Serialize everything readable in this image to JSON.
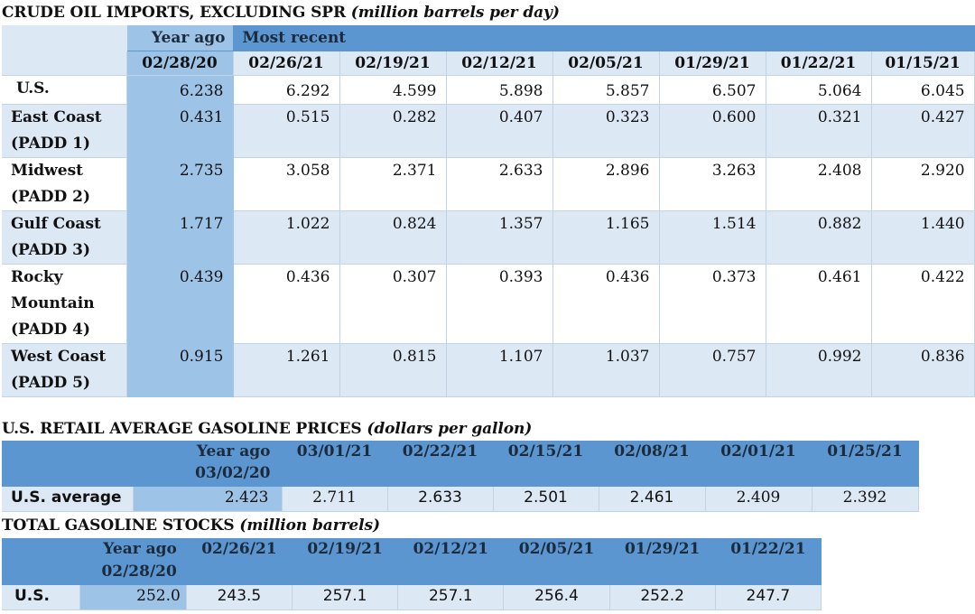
{
  "crude": {
    "title": "CRUDE OIL IMPORTS, EXCLUDING SPR",
    "unit": "(million barrels per day)",
    "year_ago_label": "Year ago",
    "most_recent_label": "Most recent",
    "dates": [
      "02/28/20",
      "02/26/21",
      "02/19/21",
      "02/12/21",
      "02/05/21",
      "01/29/21",
      "01/22/21",
      "01/15/21"
    ],
    "rows": [
      {
        "label": "U.S.",
        "values": [
          "6.238",
          "6.292",
          "4.599",
          "5.898",
          "5.857",
          "6.507",
          "5.064",
          "6.045"
        ]
      },
      {
        "label": "East Coast (PADD 1)",
        "values": [
          "0.431",
          "0.515",
          "0.282",
          "0.407",
          "0.323",
          "0.600",
          "0.321",
          "0.427"
        ]
      },
      {
        "label": "Midwest (PADD 2)",
        "values": [
          "2.735",
          "3.058",
          "2.371",
          "2.633",
          "2.896",
          "3.263",
          "2.408",
          "2.920"
        ]
      },
      {
        "label": "Gulf Coast (PADD 3)",
        "values": [
          "1.717",
          "1.022",
          "0.824",
          "1.357",
          "1.165",
          "1.514",
          "0.882",
          "1.440"
        ]
      },
      {
        "label": "Rocky Mountain (PADD 4)",
        "values": [
          "0.439",
          "0.436",
          "0.307",
          "0.393",
          "0.436",
          "0.373",
          "0.461",
          "0.422"
        ]
      },
      {
        "label": "West Coast (PADD 5)",
        "values": [
          "0.915",
          "1.261",
          "0.815",
          "1.107",
          "1.037",
          "0.757",
          "0.992",
          "0.836"
        ]
      }
    ]
  },
  "gasoline_prices": {
    "title": "U.S. RETAIL AVERAGE GASOLINE PRICES",
    "unit": "(dollars per gallon)",
    "year_ago_label": "Year ago",
    "year_ago_date": "03/02/20",
    "dates": [
      "03/01/21",
      "02/22/21",
      "02/15/21",
      "02/08/21",
      "02/01/21",
      "01/25/21"
    ],
    "row_label": "U.S. average",
    "year_ago_value": "2.423",
    "values": [
      "2.711",
      "2.633",
      "2.501",
      "2.461",
      "2.409",
      "2.392"
    ]
  },
  "gasoline_stocks": {
    "title": "TOTAL GASOLINE STOCKS",
    "unit": "(million barrels)",
    "year_ago_label": "Year ago",
    "year_ago_date": "02/28/20",
    "dates": [
      "02/26/21",
      "02/19/21",
      "02/12/21",
      "02/05/21",
      "01/29/21",
      "01/22/21"
    ],
    "row_label": "U.S.",
    "year_ago_value": "252.0",
    "values": [
      "243.5",
      "257.1",
      "257.1",
      "256.4",
      "252.2",
      "247.7"
    ]
  },
  "colors": {
    "header_blue": "#5b96d1",
    "year_ago_blue": "#9dc3e7",
    "row_light": "#dde8f5"
  }
}
